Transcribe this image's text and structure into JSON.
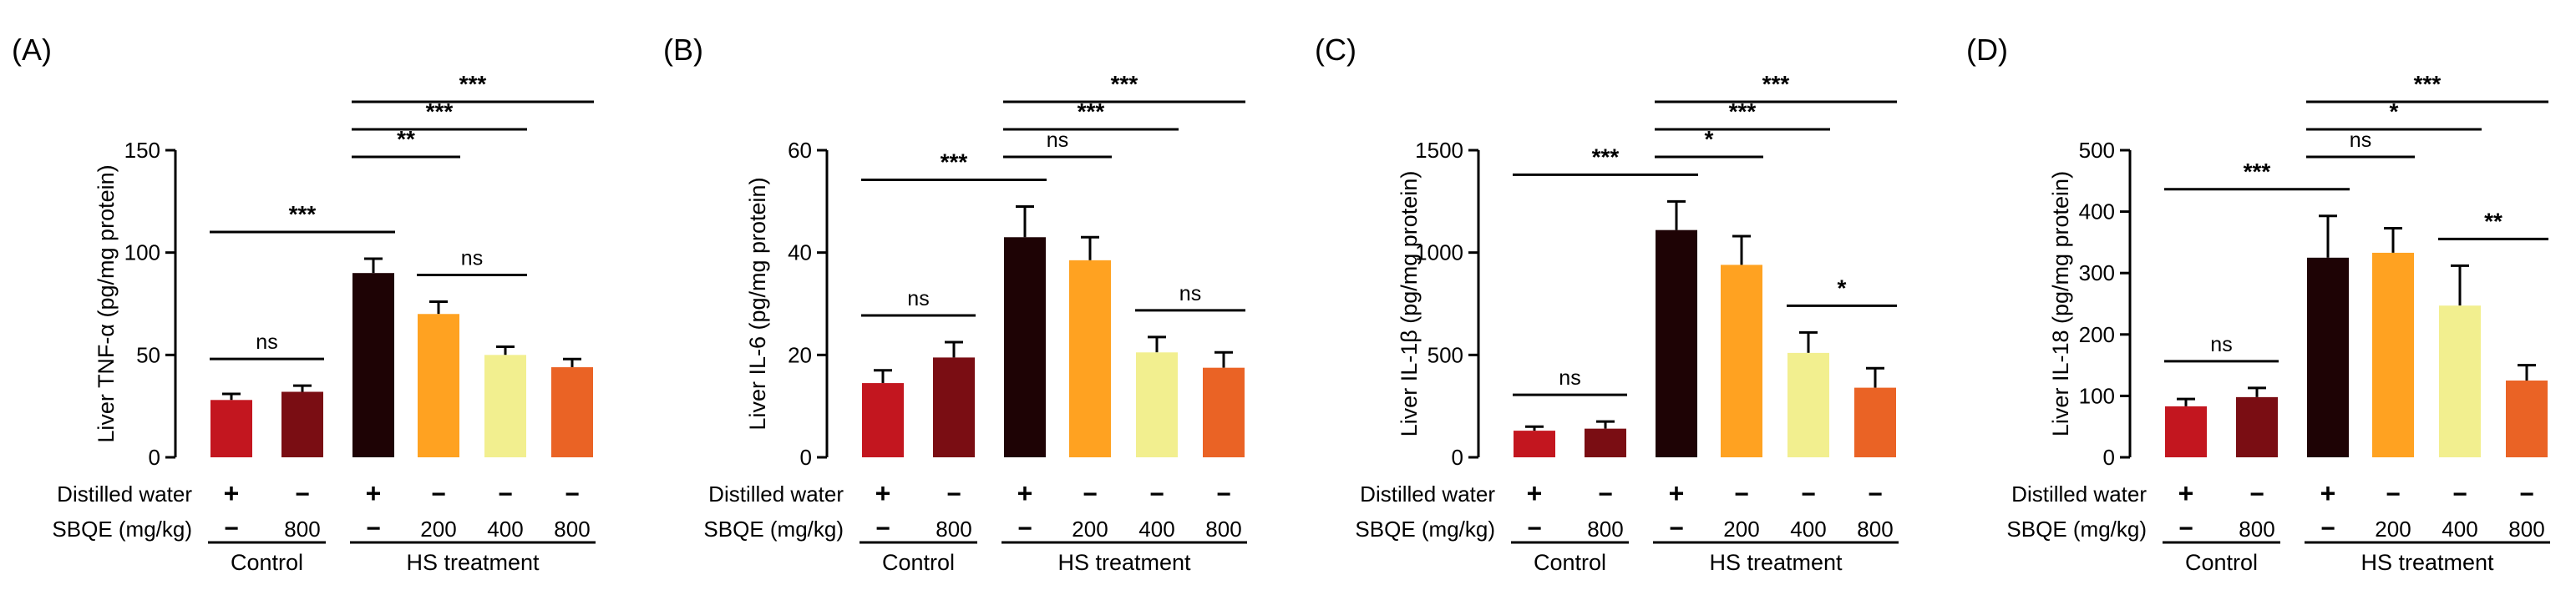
{
  "colors": [
    "#c3161f",
    "#7a0d13",
    "#1e0305",
    "#ffa221",
    "#f2ef8f",
    "#ea6325"
  ],
  "row_labels": {
    "water": "Distilled water",
    "dose": "SBQE (mg/kg)"
  },
  "water_marks": [
    "+",
    "−",
    "+",
    "−",
    "−",
    "−"
  ],
  "dose_marks": [
    "−",
    "800",
    "−",
    "200",
    "400",
    "800"
  ],
  "groups": [
    {
      "label": "Control",
      "from": 0,
      "to": 1
    },
    {
      "label": "HS treatment",
      "from": 2,
      "to": 5
    }
  ],
  "chart_data": [
    {
      "type": "bar",
      "panel_label": "(A)",
      "ylabel": "Liver TNF-α (pg/mg protein)",
      "ylim": [
        0,
        150
      ],
      "yticks": [
        0,
        50,
        100,
        150
      ],
      "categories": [
        "Control",
        "Control + SBQE 800",
        "HS",
        "HS + SBQE 200",
        "HS + SBQE 400",
        "HS + SBQE 800"
      ],
      "values": [
        28,
        32,
        90,
        70,
        50,
        44
      ],
      "errors": [
        3,
        3,
        7,
        6,
        4,
        4
      ],
      "significance": [
        {
          "a": 0,
          "b": 1,
          "label": "ns"
        },
        {
          "a": 3,
          "b": 4,
          "label": "ns"
        },
        {
          "a": 0,
          "b": 2,
          "label": "***"
        },
        {
          "a": 2,
          "b": 3,
          "label": "**"
        },
        {
          "a": 2,
          "b": 4,
          "label": "***"
        },
        {
          "a": 2,
          "b": 5,
          "label": "***"
        }
      ]
    },
    {
      "type": "bar",
      "panel_label": "(B)",
      "ylabel": "Liver IL-6 (pg/mg protein)",
      "ylim": [
        0,
        60
      ],
      "yticks": [
        0,
        20,
        40,
        60
      ],
      "categories": [
        "Control",
        "Control + SBQE 800",
        "HS",
        "HS + SBQE 200",
        "HS + SBQE 400",
        "HS + SBQE 800"
      ],
      "values": [
        14.5,
        19.5,
        43,
        38.5,
        20.5,
        17.5
      ],
      "errors": [
        2.5,
        3,
        6,
        4.5,
        3,
        3
      ],
      "significance": [
        {
          "a": 0,
          "b": 1,
          "label": "ns"
        },
        {
          "a": 4,
          "b": 5,
          "label": "ns"
        },
        {
          "a": 0,
          "b": 2,
          "label": "***"
        },
        {
          "a": 2,
          "b": 3,
          "label": "ns"
        },
        {
          "a": 2,
          "b": 4,
          "label": "***"
        },
        {
          "a": 2,
          "b": 5,
          "label": "***"
        }
      ]
    },
    {
      "type": "bar",
      "panel_label": "(C)",
      "ylabel": "Liver IL-1β (pg/mg protein)",
      "ylim": [
        0,
        1500
      ],
      "yticks": [
        0,
        500,
        1000,
        1500
      ],
      "categories": [
        "Control",
        "Control + SBQE 800",
        "HS",
        "HS + SBQE 200",
        "HS + SBQE 400",
        "HS + SBQE 800"
      ],
      "values": [
        130,
        140,
        1110,
        940,
        510,
        340
      ],
      "errors": [
        20,
        35,
        140,
        140,
        100,
        95
      ],
      "significance": [
        {
          "a": 0,
          "b": 1,
          "label": "ns"
        },
        {
          "a": 4,
          "b": 5,
          "label": "*"
        },
        {
          "a": 0,
          "b": 2,
          "label": "***"
        },
        {
          "a": 2,
          "b": 3,
          "label": "*"
        },
        {
          "a": 2,
          "b": 4,
          "label": "***"
        },
        {
          "a": 2,
          "b": 5,
          "label": "***"
        }
      ]
    },
    {
      "type": "bar",
      "panel_label": "(D)",
      "ylabel": "Liver IL-18 (pg/mg protein)",
      "ylim": [
        0,
        500
      ],
      "yticks": [
        0,
        100,
        200,
        300,
        400,
        500
      ],
      "categories": [
        "Control",
        "Control + SBQE 800",
        "HS",
        "HS + SBQE 200",
        "HS + SBQE 400",
        "HS + SBQE 800"
      ],
      "values": [
        83,
        98,
        325,
        333,
        247,
        125
      ],
      "errors": [
        12,
        15,
        68,
        40,
        65,
        25
      ],
      "significance": [
        {
          "a": 0,
          "b": 1,
          "label": "ns"
        },
        {
          "a": 4,
          "b": 5,
          "label": "**"
        },
        {
          "a": 0,
          "b": 2,
          "label": "***"
        },
        {
          "a": 2,
          "b": 3,
          "label": "ns"
        },
        {
          "a": 2,
          "b": 4,
          "label": "*"
        },
        {
          "a": 2,
          "b": 5,
          "label": "***"
        }
      ]
    }
  ]
}
